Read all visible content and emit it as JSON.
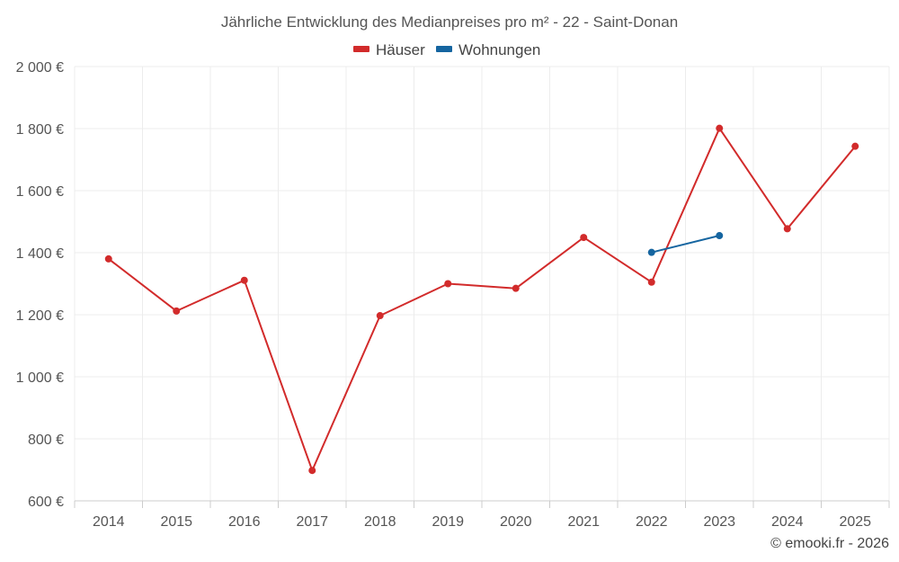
{
  "chart_data": {
    "type": "line",
    "title": "Jährliche Entwicklung des Medianpreises pro m² - 22 - Saint-Donan",
    "categories": [
      "2014",
      "2015",
      "2016",
      "2017",
      "2018",
      "2019",
      "2020",
      "2021",
      "2022",
      "2023",
      "2024",
      "2025"
    ],
    "series": [
      {
        "name": "Häuser",
        "color": "#d22b2b",
        "values": [
          1380,
          1212,
          1311,
          698,
          1197,
          1300,
          1285,
          1449,
          1305,
          1801,
          1477,
          1743
        ]
      },
      {
        "name": "Wohnungen",
        "color": "#1565a0",
        "values": [
          null,
          null,
          null,
          null,
          null,
          null,
          null,
          null,
          1401,
          1455,
          null,
          null
        ]
      }
    ],
    "yticks": [
      600,
      800,
      1000,
      1200,
      1400,
      1600,
      1800,
      2000
    ],
    "ytick_labels": [
      "600 €",
      "800 €",
      "1 000 €",
      "1 200 €",
      "1 400 €",
      "1 600 €",
      "1 800 €",
      "2 000 €"
    ],
    "ylim": [
      600,
      2000
    ],
    "xlabel": "",
    "ylabel": "",
    "grid": true,
    "legend_position": "top-center"
  },
  "credit": "© emooki.fr - 2026"
}
